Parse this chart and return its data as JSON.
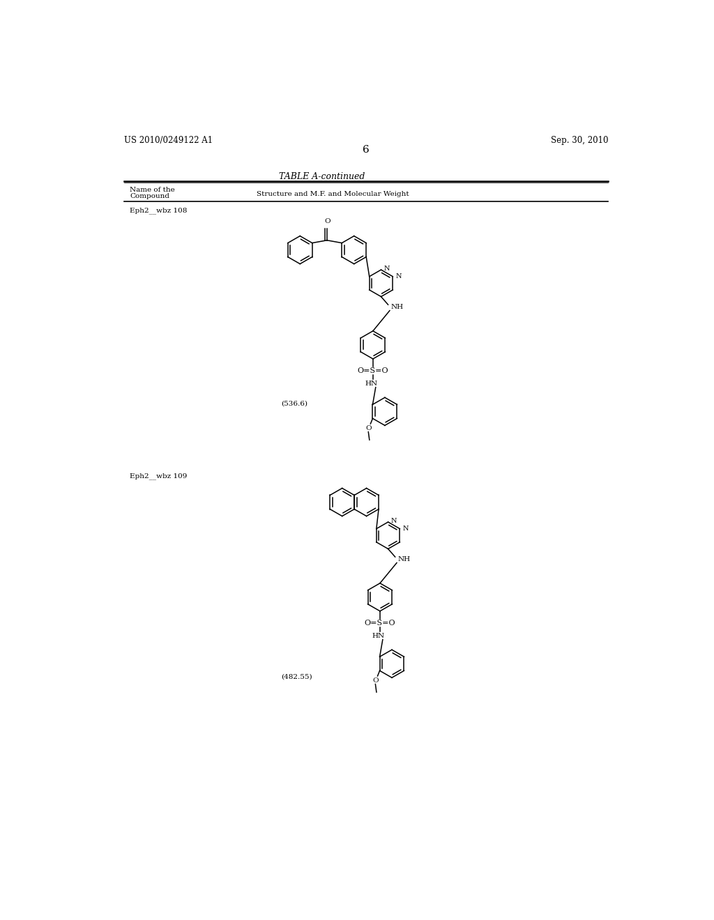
{
  "background_color": "#ffffff",
  "page_width": 10.24,
  "page_height": 13.2,
  "header_left": "US 2010/0249122 A1",
  "header_right": "Sep. 30, 2010",
  "page_number": "6",
  "table_title": "TABLE A-continued",
  "col1_header_line1": "Name of the",
  "col1_header_line2": "Compound",
  "col2_header": "Structure and M.F. and Molecular Weight",
  "compound1_name": "Eph2__wbz 108",
  "compound1_mw": "(536.6)",
  "compound2_name": "Eph2__wbz 109",
  "compound2_mw": "(482.55)",
  "font_color": "#000000"
}
